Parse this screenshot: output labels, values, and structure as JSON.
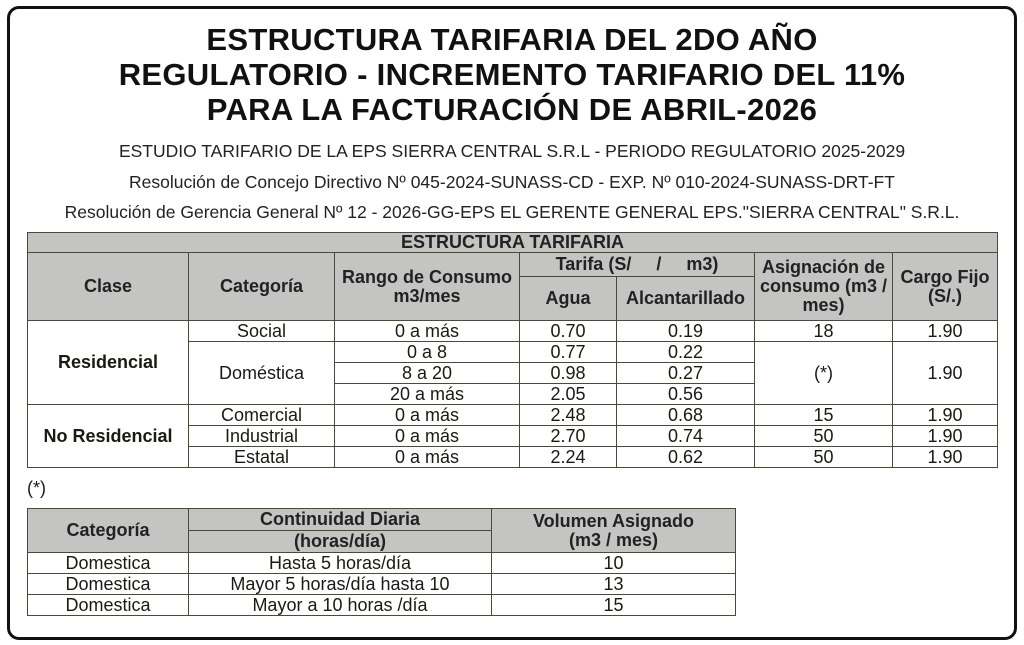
{
  "title": {
    "line1": "ESTRUCTURA TARIFARIA DEL 2DO AÑO",
    "line2": "REGULATORIO - INCREMENTO TARIFARIO DEL 11%",
    "line3": "PARA LA FACTURACIÓN DE ABRIL-2026"
  },
  "subtitles": [
    "ESTUDIO TARIFARIO DE LA EPS SIERRA CENTRAL S.R.L - PERIODO REGULATORIO 2025-2029",
    "Resolución de Concejo Directivo Nº 045-2024-SUNASS-CD - EXP. Nº 010-2024-SUNASS-DRT-FT",
    "Resolución de Gerencia General Nº 12 - 2026-GG-EPS EL GERENTE GENERAL EPS.\"SIERRA CENTRAL\" S.R.L."
  ],
  "main_table": {
    "caption": "ESTRUCTURA TARIFARIA",
    "headers": {
      "clase": "Clase",
      "categoria": "Categoría",
      "rango": "Rango de Consumo m3/mes",
      "tarifa": "Tarifa (S/     /     m3)",
      "agua": "Agua",
      "alcantarillado": "Alcantarillado",
      "asignacion": "Asignación de consumo (m3 / mes)",
      "cargo": "Cargo Fijo (S/.)"
    },
    "clases": [
      "Residencial",
      "No Residencial"
    ],
    "rows": [
      {
        "categoria": "Social",
        "rango": "0 a más",
        "agua": "0.70",
        "alc": "0.19",
        "asig": "18",
        "cargo": "1.90"
      },
      {
        "categoria": "Doméstica",
        "rango": "0 a 8",
        "agua": "0.77",
        "alc": "0.22",
        "asig": "(*)",
        "cargo": "1.90"
      },
      {
        "rango": "8 a 20",
        "agua": "0.98",
        "alc": "0.27"
      },
      {
        "rango": "20 a más",
        "agua": "2.05",
        "alc": "0.56"
      },
      {
        "categoria": "Comercial",
        "rango": "0 a más",
        "agua": "2.48",
        "alc": "0.68",
        "asig": "15",
        "cargo": "1.90"
      },
      {
        "categoria": "Industrial",
        "rango": "0 a más",
        "agua": "2.70",
        "alc": "0.74",
        "asig": "50",
        "cargo": "1.90"
      },
      {
        "categoria": "Estatal",
        "rango": "0 a más",
        "agua": "2.24",
        "alc": "0.62",
        "asig": "50",
        "cargo": "1.90"
      }
    ]
  },
  "note": "(*)",
  "second_table": {
    "headers": {
      "categoria": "Categoría",
      "continuidad": "Continuidad Diaria",
      "continuidad_unit": "(horas/día)",
      "volumen": "Volumen Asignado (m3 / mes)"
    },
    "rows": [
      {
        "categoria": "Domestica",
        "continuidad": "Hasta 5 horas/día",
        "volumen": "10"
      },
      {
        "categoria": "Domestica",
        "continuidad": "Mayor 5 horas/día hasta 10",
        "volumen": "13"
      },
      {
        "categoria": "Domestica",
        "continuidad": "Mayor a 10 horas /día",
        "volumen": "15"
      }
    ]
  }
}
